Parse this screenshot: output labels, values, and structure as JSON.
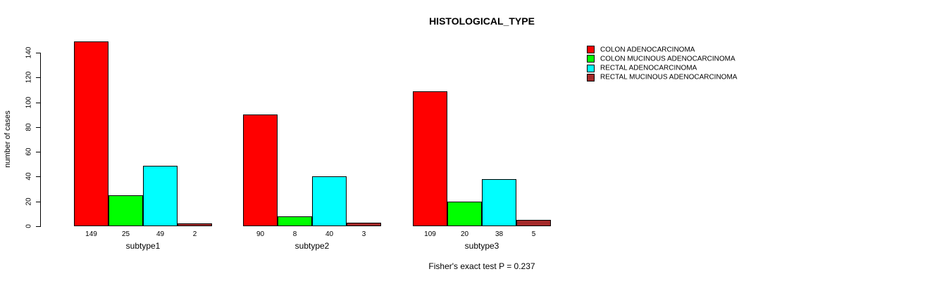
{
  "chart_data": {
    "type": "bar",
    "title": "HISTOLOGICAL_TYPE",
    "ylabel": "number of cases",
    "xlabel": "",
    "ylim": [
      0,
      140
    ],
    "yticks": [
      0,
      20,
      40,
      60,
      80,
      100,
      120,
      140
    ],
    "categories": [
      "subtype1",
      "subtype2",
      "subtype3"
    ],
    "series": [
      {
        "name": "COLON ADENOCARCINOMA",
        "color": "#FF0000",
        "values": [
          149,
          90,
          109
        ]
      },
      {
        "name": "COLON MUCINOUS ADENOCARCINOMA",
        "color": "#00FF00",
        "values": [
          25,
          8,
          20
        ]
      },
      {
        "name": "RECTAL ADENOCARCINOMA",
        "color": "#00FFFF",
        "values": [
          49,
          40,
          38
        ]
      },
      {
        "name": "RECTAL MUCINOUS ADENOCARCINOMA",
        "color": "#A52A2A",
        "values": [
          2,
          3,
          5
        ]
      }
    ],
    "bar_value_labels": [
      [
        149,
        25,
        49,
        2
      ],
      [
        90,
        8,
        40,
        3
      ],
      [
        109,
        20,
        38,
        5
      ]
    ],
    "legend_position": "right",
    "grid": false,
    "axis_color": "#000000",
    "annotation": "Fisher's exact test P = 0.237"
  }
}
